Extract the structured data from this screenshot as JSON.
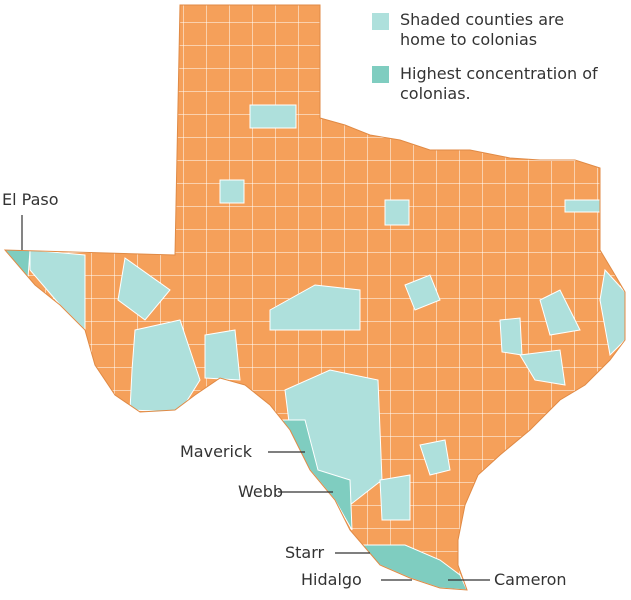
{
  "legend": [
    {
      "label": "Shaded counties are home to colonias"
    },
    {
      "label": "Highest concentration of colonias."
    }
  ],
  "labels": [
    "El Paso",
    "Maverick",
    "Webb",
    "Starr",
    "Hidalgo",
    "Cameron"
  ]
}
